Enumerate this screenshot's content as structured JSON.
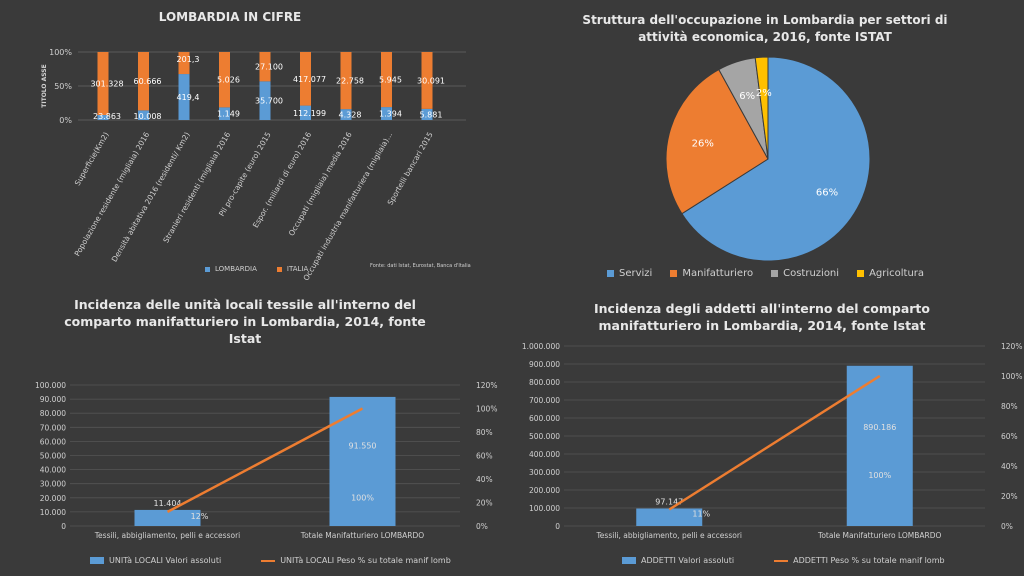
{
  "chart_data": [
    {
      "type": "bar",
      "title": "LOMBARDIA IN CIFRE",
      "ylabel": "TITOLO ASSE",
      "stacked_percent": true,
      "categories": [
        "Superficie(Km2)",
        "Popolazione residente (migliaia) 2016",
        "Densità abitativa 2016 (residenti/ Km2)",
        "Stranieri residenti (migliaia) 2016",
        "Pil pro-capite (euro) 2015",
        "Espor. (miliardi di euro) 2016",
        "Occupati (migliaia) media 2016",
        "Occupati industria manifatturiera (migliaia)...",
        "Sportelli bancari 2015"
      ],
      "series": [
        {
          "name": "LOMBARDIA",
          "color": "#5b9bd5",
          "values": [
            23.863,
            10.008,
            419.4,
            1.149,
            35.7,
            112.199,
            4.328,
            1.394,
            5.881
          ],
          "labels": [
            "23.863",
            "10.008",
            "419,4",
            "1.149",
            "35.700",
            "112.199",
            "4.328",
            "1.394",
            "5.881"
          ]
        },
        {
          "name": "ITALIA",
          "color": "#ed7d31",
          "values": [
            301.328,
            60.666,
            201.3,
            5.026,
            27.1,
            417.077,
            22.758,
            5.945,
            30.091
          ],
          "labels": [
            "301.328",
            "60.666",
            "201,3",
            "5.026",
            "27.100",
            "417.077",
            "22.758",
            "5.945",
            "30.091"
          ]
        }
      ],
      "yticks": [
        "0%",
        "50%",
        "100%"
      ],
      "note": "Fonte: dati Istat, Eurostat, Banca d'Italia",
      "legend": "bottom"
    },
    {
      "type": "pie",
      "title": "Struttura dell'occupazione in Lombardia per settori di attività economica, 2016, fonte ISTAT",
      "slices": [
        {
          "name": "Servizi",
          "value": 66,
          "label": "66%",
          "color": "#5b9bd5"
        },
        {
          "name": "Manifatturiero",
          "value": 26,
          "label": "26%",
          "color": "#ed7d31"
        },
        {
          "name": "Costruzioni",
          "value": 6,
          "label": "6%",
          "color": "#a5a5a5"
        },
        {
          "name": "Agricoltura",
          "value": 2,
          "label": "2%",
          "color": "#ffc000"
        }
      ],
      "legend": "bottom"
    },
    {
      "type": "bar",
      "title": "Incidenza delle unità locali tessile all'interno del comparto manifatturiero in Lombardia, 2014, fonte Istat",
      "categories": [
        "Tessili, abbigliamento, pelli e accessori",
        "Totale Manifatturiero LOMBARDO"
      ],
      "bars": {
        "name": "UNITà LOCALI Valori assoluti",
        "values": [
          11404,
          91550
        ],
        "labels": [
          "11.404",
          "91.550"
        ],
        "color": "#5b9bd5"
      },
      "line": {
        "name": "UNITà LOCALI Peso % su totale manif lomb",
        "values": [
          12,
          100
        ],
        "labels": [
          "12%",
          "100%"
        ],
        "color": "#ed7d31"
      },
      "ylim": [
        0,
        100000
      ],
      "yticks": [
        "0",
        "10.000",
        "20.000",
        "30.000",
        "40.000",
        "50.000",
        "60.000",
        "70.000",
        "80.000",
        "90.000",
        "100.000"
      ],
      "y2lim": [
        0,
        120
      ],
      "y2ticks": [
        "0%",
        "20%",
        "40%",
        "60%",
        "80%",
        "100%",
        "120%"
      ],
      "legend": "bottom"
    },
    {
      "type": "bar",
      "title": "Incidenza degli addetti all'interno del comparto manifatturiero in Lombardia, 2014, fonte Istat",
      "categories": [
        "Tessili, abbigliamento, pelli e accessori",
        "Totale Manifatturiero LOMBARDO"
      ],
      "bars": {
        "name": "ADDETTI Valori assoluti",
        "values": [
          97147,
          890186
        ],
        "labels": [
          "97.147",
          "890.186"
        ],
        "color": "#5b9bd5"
      },
      "line": {
        "name": "ADDETTI Peso % su totale manif lomb",
        "values": [
          11,
          100
        ],
        "labels": [
          "11%",
          "100%"
        ],
        "color": "#ed7d31"
      },
      "ylim": [
        0,
        1000000
      ],
      "yticks": [
        "0",
        "100.000",
        "200.000",
        "300.000",
        "400.000",
        "500.000",
        "600.000",
        "700.000",
        "800.000",
        "900.000",
        "1.000.000"
      ],
      "y2lim": [
        0,
        120
      ],
      "y2ticks": [
        "0%",
        "20%",
        "40%",
        "60%",
        "80%",
        "100%",
        "120%"
      ],
      "legend": "bottom"
    }
  ]
}
